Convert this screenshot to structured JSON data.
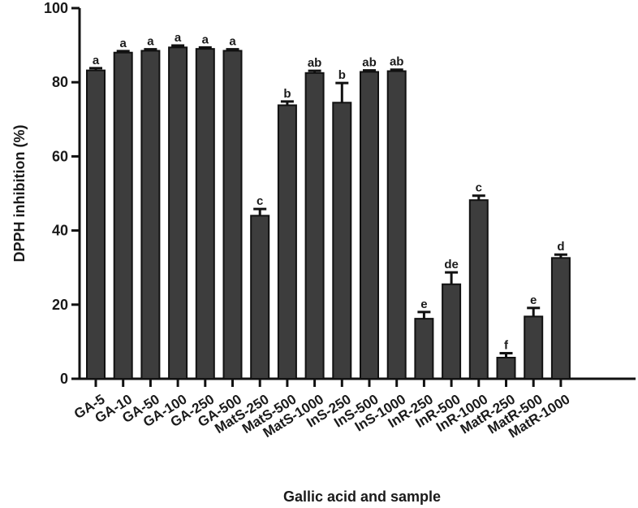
{
  "chart_data": {
    "type": "bar",
    "title": "",
    "xlabel": "Gallic acid and sample",
    "ylabel": "DPPH inhibition (%)",
    "ylim": [
      0,
      100
    ],
    "yticks": [
      "0",
      "20",
      "40",
      "60",
      "80",
      "100"
    ],
    "grid": false,
    "legend": "none",
    "bar_color": "#3d3d3d",
    "categories": [
      "GA-5",
      "GA-10",
      "GA-50",
      "GA-100",
      "GA-250",
      "GA-500",
      "MatS-250",
      "MatS-500",
      "MatS-1000",
      "InS-250",
      "InS-500",
      "InS-1000",
      "InR-250",
      "InR-500",
      "InR-1000",
      "MatR-250",
      "MatR-500",
      "MatR-1000"
    ],
    "values": [
      83.2,
      88.0,
      88.5,
      89.4,
      89.0,
      88.5,
      44.0,
      73.8,
      82.5,
      74.5,
      82.8,
      83.0,
      16.2,
      25.5,
      48.2,
      5.7,
      16.8,
      32.6
    ],
    "errors": [
      0.6,
      0.4,
      0.4,
      0.5,
      0.4,
      0.4,
      1.8,
      1.0,
      0.6,
      5.3,
      0.4,
      0.4,
      1.8,
      3.2,
      1.2,
      1.2,
      2.3,
      0.9
    ],
    "significance": [
      "a",
      "a",
      "a",
      "a",
      "a",
      "a",
      "c",
      "b",
      "ab",
      "b",
      "ab",
      "ab",
      "e",
      "de",
      "c",
      "f",
      "e",
      "d"
    ]
  }
}
